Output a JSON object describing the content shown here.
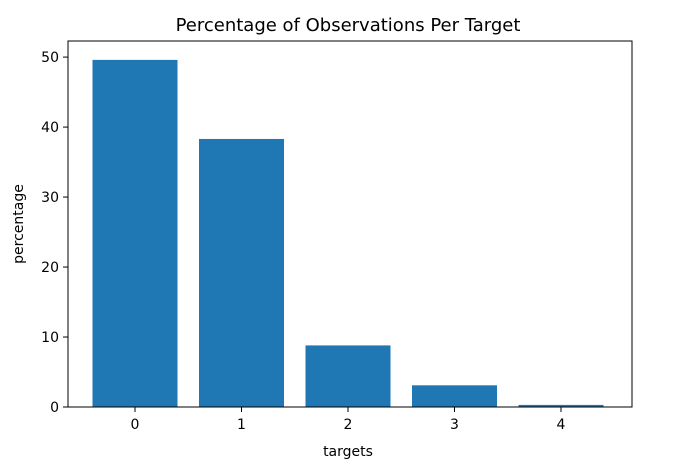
{
  "chart_data": {
    "type": "bar",
    "title": "Percentage of Observations Per Target",
    "xlabel": "targets",
    "ylabel": "percentage",
    "categories": [
      "0",
      "1",
      "2",
      "3",
      "4"
    ],
    "values": [
      49.6,
      38.3,
      8.8,
      3.1,
      0.3
    ],
    "ylim": [
      0,
      52.3
    ],
    "yticks": [
      0,
      10,
      20,
      30,
      40,
      50
    ],
    "bar_color": "#1f77b4",
    "grid": false
  }
}
